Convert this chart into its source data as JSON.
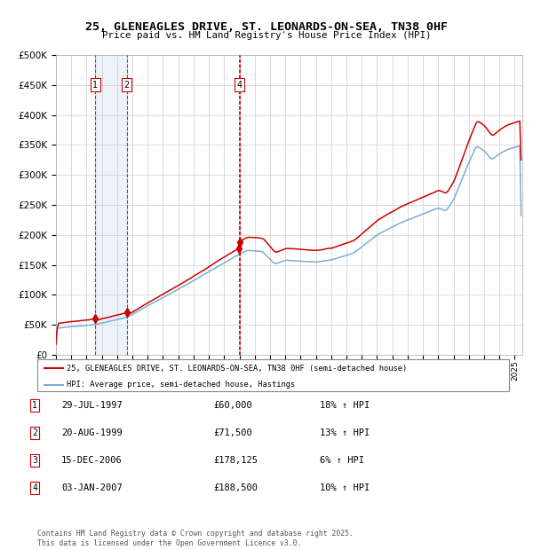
{
  "title": "25, GLENEAGLES DRIVE, ST. LEONARDS-ON-SEA, TN38 0HF",
  "subtitle": "Price paid vs. HM Land Registry's House Price Index (HPI)",
  "legend_entries": [
    "25, GLENEAGLES DRIVE, ST. LEONARDS-ON-SEA, TN38 0HF (semi-detached house)",
    "HPI: Average price, semi-detached house, Hastings"
  ],
  "table_rows": [
    [
      "1",
      "29-JUL-1997",
      "£60,000",
      "18% ↑ HPI"
    ],
    [
      "2",
      "20-AUG-1999",
      "£71,500",
      "13% ↑ HPI"
    ],
    [
      "3",
      "15-DEC-2006",
      "£178,125",
      "6% ↑ HPI"
    ],
    [
      "4",
      "03-JAN-2007",
      "£188,500",
      "10% ↑ HPI"
    ]
  ],
  "footer": "Contains HM Land Registry data © Crown copyright and database right 2025.\nThis data is licensed under the Open Government Licence v3.0.",
  "sale_dates_num": [
    1997.57,
    1999.64,
    2006.96,
    2007.01
  ],
  "sale_prices": [
    60000,
    71500,
    178125,
    188500
  ],
  "background_color": "#ffffff",
  "grid_color": "#cccccc",
  "red_line_color": "#cc0000",
  "blue_line_color": "#7aaed6",
  "sale_marker_color": "#cc0000",
  "dashed_line_color": "#cc0000",
  "shade_color": "#ccddf5",
  "ylim": [
    0,
    500000
  ],
  "yticks": [
    0,
    50000,
    100000,
    150000,
    200000,
    250000,
    300000,
    350000,
    400000,
    450000,
    500000
  ],
  "xlim_start": 1995.0,
  "xlim_end": 2025.5
}
